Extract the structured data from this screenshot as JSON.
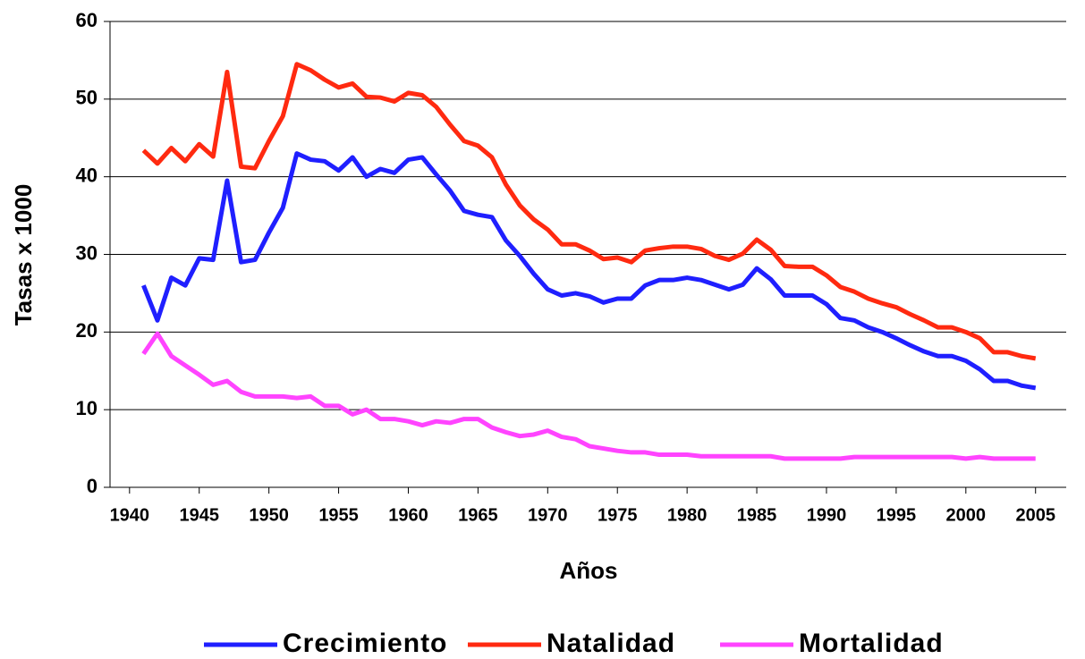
{
  "chart_data": {
    "type": "line",
    "xlabel": "Años",
    "ylabel": "Tasas x 1000",
    "x": [
      1941,
      1942,
      1943,
      1944,
      1945,
      1946,
      1947,
      1948,
      1949,
      1950,
      1951,
      1952,
      1953,
      1954,
      1955,
      1956,
      1957,
      1958,
      1959,
      1960,
      1961,
      1962,
      1963,
      1964,
      1965,
      1966,
      1967,
      1968,
      1969,
      1970,
      1971,
      1972,
      1973,
      1974,
      1975,
      1976,
      1977,
      1978,
      1979,
      1980,
      1981,
      1982,
      1983,
      1984,
      1985,
      1986,
      1987,
      1988,
      1989,
      1990,
      1991,
      1992,
      1993,
      1994,
      1995,
      1996,
      1997,
      1998,
      1999,
      2000,
      2001,
      2002,
      2003,
      2004,
      2005
    ],
    "series": [
      {
        "name": "Crecimiento",
        "color": "#1f1fff",
        "values": [
          26,
          21.5,
          27,
          26,
          29.5,
          29.3,
          39.5,
          29,
          29.3,
          32.8,
          36,
          43,
          42.2,
          42,
          40.8,
          42.5,
          40,
          41,
          40.5,
          42.2,
          42.5,
          40.3,
          38.2,
          35.6,
          35.1,
          34.8,
          31.8,
          29.8,
          27.5,
          25.5,
          24.7,
          25,
          24.6,
          23.8,
          24.3,
          24.3,
          26,
          26.7,
          26.7,
          27,
          26.7,
          26.1,
          25.5,
          26.1,
          28.2,
          26.8,
          24.7,
          24.7,
          24.7,
          23.6,
          21.8,
          21.5,
          20.6,
          20,
          19.2,
          18.3,
          17.5,
          16.9,
          16.9,
          16.3,
          15.2,
          13.7,
          13.7,
          13.1,
          12.8
        ]
      },
      {
        "name": "Natalidad",
        "color": "#ff2a10",
        "values": [
          43.4,
          41.7,
          43.7,
          42,
          44.2,
          42.6,
          53.5,
          41.3,
          41.1,
          44.6,
          47.8,
          54.5,
          53.7,
          52.5,
          51.5,
          52,
          50.3,
          50.2,
          49.7,
          50.8,
          50.5,
          49,
          46.7,
          44.6,
          44,
          42.5,
          39,
          36.3,
          34.5,
          33.2,
          31.3,
          31.3,
          30.5,
          29.4,
          29.6,
          29,
          30.5,
          30.8,
          31,
          31,
          30.7,
          29.8,
          29.3,
          30.1,
          31.9,
          30.6,
          28.5,
          28.4,
          28.4,
          27.3,
          25.8,
          25.2,
          24.3,
          23.7,
          23.2,
          22.3,
          21.5,
          20.6,
          20.6,
          20,
          19.2,
          17.4,
          17.4,
          16.9,
          16.6
        ]
      },
      {
        "name": "Mortalidad",
        "color": "#ff44ff",
        "values": [
          17.2,
          19.8,
          16.9,
          15.7,
          14.5,
          13.2,
          13.7,
          12.3,
          11.7,
          11.7,
          11.7,
          11.5,
          11.7,
          10.5,
          10.5,
          9.4,
          10,
          8.8,
          8.8,
          8.5,
          8,
          8.5,
          8.3,
          8.8,
          8.8,
          7.7,
          7.1,
          6.6,
          6.8,
          7.3,
          6.5,
          6.2,
          5.3,
          5,
          4.7,
          4.5,
          4.5,
          4.2,
          4.2,
          4.2,
          4,
          4,
          4,
          4,
          4,
          4,
          3.7,
          3.7,
          3.7,
          3.7,
          3.7,
          3.9,
          3.9,
          3.9,
          3.9,
          3.9,
          3.9,
          3.9,
          3.9,
          3.7,
          3.9,
          3.7,
          3.7,
          3.7,
          3.7
        ]
      }
    ],
    "xlim": [
      1938.6,
      2007.2
    ],
    "xticks": [
      1940,
      1945,
      1950,
      1955,
      1960,
      1965,
      1970,
      1975,
      1980,
      1985,
      1990,
      1995,
      2000,
      2005
    ],
    "ylim": [
      0,
      60
    ],
    "yticks": [
      0,
      10,
      20,
      30,
      40,
      50,
      60
    ],
    "grid": true,
    "legend": "bottom"
  }
}
